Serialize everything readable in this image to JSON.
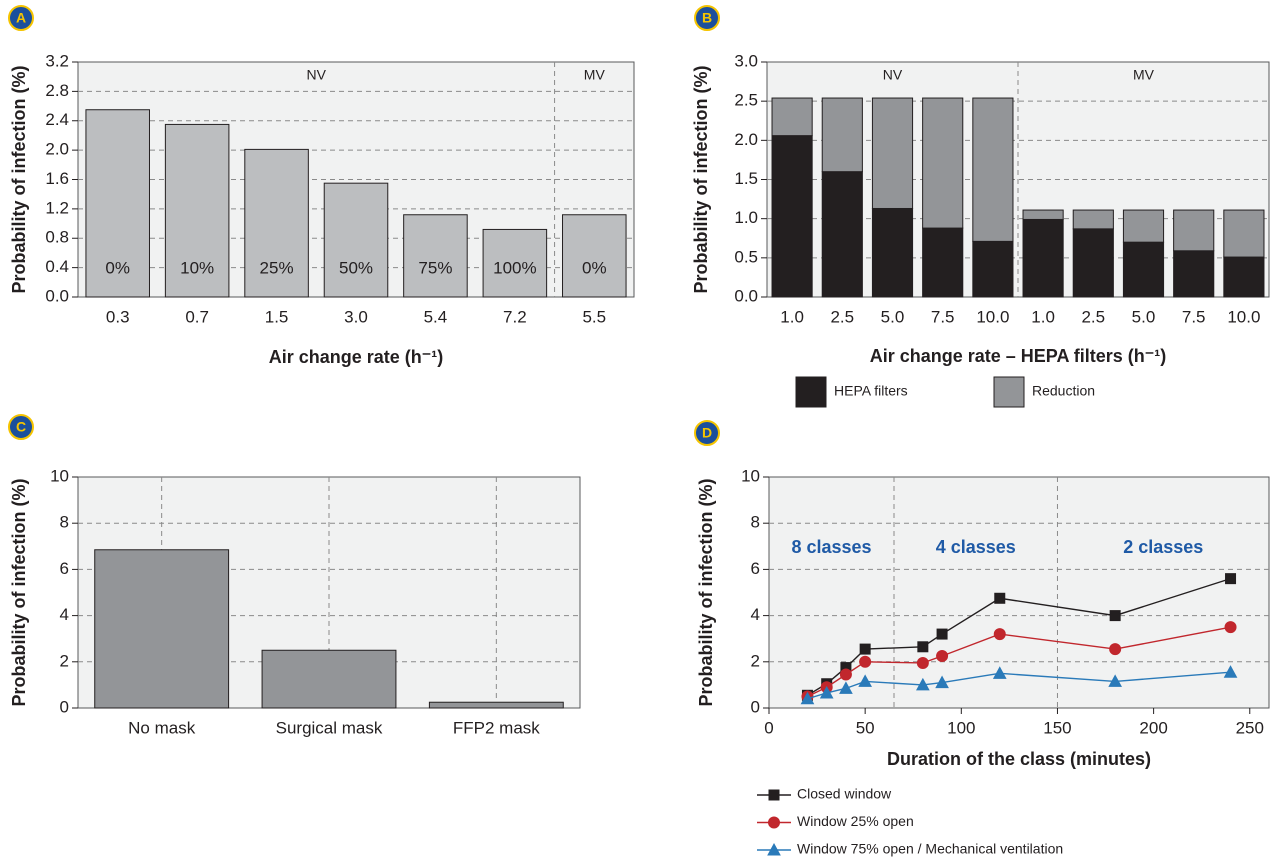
{
  "chart_data": [
    {
      "type": "bar",
      "panel_label": "A",
      "y_label": "Probability of infection (%)",
      "x_label": "Air change rate (h⁻¹)",
      "categories": [
        "0.3",
        "0.7",
        "1.5",
        "3.0",
        "5.4",
        "7.2",
        "5.5"
      ],
      "values": [
        2.55,
        2.35,
        2.01,
        1.55,
        1.12,
        0.92,
        1.12
      ],
      "bar_labels": [
        "0%",
        "10%",
        "25%",
        "50%",
        "75%",
        "100%",
        "0%"
      ],
      "color": "#bcbec0",
      "regions": [
        {
          "label": "NV",
          "count": 6
        },
        {
          "label": "MV",
          "count": 1
        }
      ],
      "ylim": [
        0,
        3.2
      ],
      "yticks": [
        {
          "value": 0,
          "label": "0.0"
        },
        0.4,
        0.8,
        1.2,
        1.6,
        {
          "value": 2,
          "label": "2.0"
        },
        2.4,
        2.8,
        3.2
      ],
      "grid": true
    },
    {
      "type": "stacked_bar",
      "panel_label": "B",
      "y_label": "Probability of infection (%)",
      "x_label": "Air change rate – HEPA filters (h⁻¹)",
      "categories": [
        "1.0",
        "2.5",
        "5.0",
        "7.5",
        "10.0",
        "1.0",
        "2.5",
        "5.0",
        "7.5",
        "10.0"
      ],
      "series": [
        {
          "name": "HEPA filters",
          "color": "#231f20",
          "values": [
            2.06,
            1.6,
            1.13,
            0.88,
            0.71,
            0.99,
            0.87,
            0.7,
            0.59,
            0.51
          ]
        },
        {
          "name": "Reduction",
          "color": "#939598",
          "values": [
            0.48,
            0.94,
            1.41,
            1.66,
            1.83,
            0.12,
            0.24,
            0.41,
            0.52,
            0.6
          ]
        }
      ],
      "regions": [
        {
          "label": "NV",
          "count": 5
        },
        {
          "label": "MV",
          "count": 5
        }
      ],
      "ylim": [
        0,
        3
      ],
      "yticks": [
        {
          "value": 0,
          "label": "0.0"
        },
        0.5,
        {
          "value": 1,
          "label": "1.0"
        },
        1.5,
        {
          "value": 2,
          "label": "2.0"
        },
        2.5,
        {
          "value": 3,
          "label": "3.0"
        }
      ],
      "grid": true,
      "legend": "bottom"
    },
    {
      "type": "bar",
      "panel_label": "C",
      "y_label": "Probability of infection (%)",
      "categories": [
        "No mask",
        "Surgical mask",
        "FFP2 mask"
      ],
      "values": [
        6.85,
        2.5,
        0.25
      ],
      "color": "#939598",
      "ylim": [
        0,
        10
      ],
      "yticks": [
        0,
        2,
        4,
        6,
        8,
        10
      ],
      "grid": true,
      "vertical_grid": true
    },
    {
      "type": "line",
      "panel_label": "D",
      "y_label": "Probability of infection (%)",
      "x_label": "Duration of the class (minutes)",
      "x": [
        20,
        30,
        40,
        50,
        80,
        90,
        120,
        180,
        240
      ],
      "series": [
        {
          "name": "Closed window",
          "color": "#231f20",
          "marker": "square",
          "values": [
            0.55,
            1.05,
            1.75,
            2.55,
            2.65,
            3.2,
            4.75,
            4.0,
            5.6
          ]
        },
        {
          "name": "Window 25% open",
          "color": "#c1272d",
          "marker": "circle",
          "values": [
            0.5,
            0.9,
            1.45,
            2.0,
            1.95,
            2.25,
            3.2,
            2.55,
            3.5
          ]
        },
        {
          "name": "Window 75% open / Mechanical ventilation",
          "color": "#2a7ab9",
          "marker": "triangle",
          "values": [
            0.4,
            0.65,
            0.85,
            1.15,
            1.0,
            1.1,
            1.5,
            1.15,
            1.55
          ]
        }
      ],
      "dividers": [
        65,
        150
      ],
      "annotations": [
        "8 classes",
        "4 classes",
        "2 classes"
      ],
      "annotation_color": "#1f5aa6",
      "xlim": [
        0,
        260
      ],
      "xticks": [
        0,
        50,
        100,
        150,
        200,
        250
      ],
      "ylim": [
        0,
        10
      ],
      "yticks": [
        0,
        2,
        4,
        6,
        8,
        10
      ],
      "grid": true,
      "legend": "bottom"
    }
  ]
}
